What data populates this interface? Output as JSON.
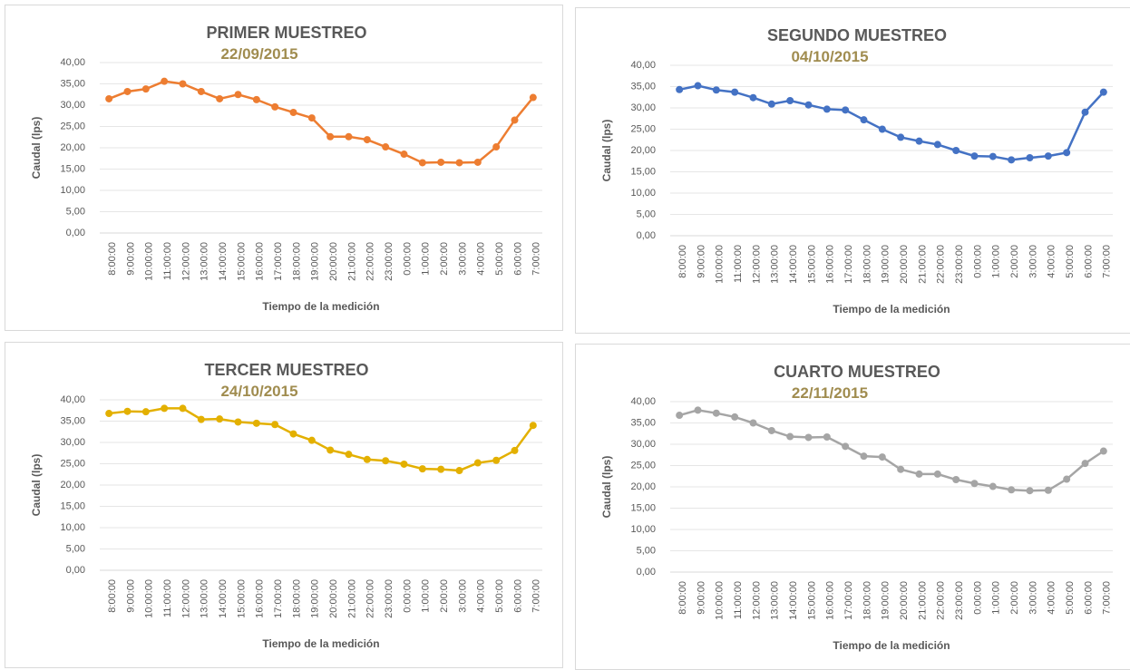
{
  "chart_data": [
    {
      "type": "line",
      "title": "PRIMER MUESTREO",
      "subtitle": "22/09/2015",
      "y_label": "Caudal (lps)",
      "x_label": "Tiempo de la medición",
      "categories": [
        "8:00:00",
        "9:00:00",
        "10:00:00",
        "11:00:00",
        "12:00:00",
        "13:00:00",
        "14:00:00",
        "15:00:00",
        "16:00:00",
        "17:00:00",
        "18:00:00",
        "19:00:00",
        "20:00:00",
        "21:00:00",
        "22:00:00",
        "23:00:00",
        "0:00:00",
        "1:00:00",
        "2:00:00",
        "3:00:00",
        "4:00:00",
        "5:00:00",
        "6:00:00",
        "7:00:00"
      ],
      "values": [
        31.5,
        33.2,
        33.8,
        35.6,
        35,
        33.2,
        31.5,
        32.5,
        31.3,
        29.6,
        28.3,
        27,
        22.6,
        22.6,
        21.9,
        20.2,
        18.5,
        16.5,
        16.6,
        16.5,
        16.6,
        20.2,
        26.5,
        31.8
      ],
      "color": "#ed7d31",
      "ylim": [
        0,
        40
      ],
      "yticks": [
        {
          "value": 0,
          "label": "0,00"
        },
        {
          "value": 5,
          "label": "5,00"
        },
        {
          "value": 10,
          "label": "10,00"
        },
        {
          "value": 15,
          "label": "15,00"
        },
        {
          "value": 20,
          "label": "20,00"
        },
        {
          "value": 25,
          "label": "25,00"
        },
        {
          "value": 30,
          "label": "30,00"
        },
        {
          "value": 35,
          "label": "35,00"
        },
        {
          "value": 40,
          "label": "40,00"
        }
      ],
      "grid": true
    },
    {
      "type": "line",
      "title": "SEGUNDO MUESTREO",
      "subtitle": "04/10/2015",
      "y_label": "Caudal (lps)",
      "x_label": "Tiempo de la medición",
      "categories": [
        "8:00:00",
        "9:00:00",
        "10:00:00",
        "11:00:00",
        "12:00:00",
        "13:00:00",
        "14:00:00",
        "15:00:00",
        "16:00:00",
        "17:00:00",
        "18:00:00",
        "19:00:00",
        "20:00:00",
        "21:00:00",
        "22:00:00",
        "23:00:00",
        "0:00:00",
        "1:00:00",
        "2:00:00",
        "3:00:00",
        "4:00:00",
        "5:00:00",
        "6:00:00",
        "7:00:00"
      ],
      "values": [
        34.3,
        35.2,
        34.2,
        33.7,
        32.4,
        30.9,
        31.7,
        30.7,
        29.7,
        29.5,
        27.2,
        25,
        23.1,
        22.2,
        21.4,
        20,
        18.7,
        18.6,
        17.8,
        18.3,
        18.7,
        19.5,
        29,
        33.7
      ],
      "color": "#4472c4",
      "ylim": [
        0,
        40
      ],
      "yticks": [
        {
          "value": 0,
          "label": "0,00"
        },
        {
          "value": 5,
          "label": "5,00"
        },
        {
          "value": 10,
          "label": "10,00"
        },
        {
          "value": 15,
          "label": "15,00"
        },
        {
          "value": 20,
          "label": "20,00"
        },
        {
          "value": 25,
          "label": "25,00"
        },
        {
          "value": 30,
          "label": "30,00"
        },
        {
          "value": 35,
          "label": "35,00"
        },
        {
          "value": 40,
          "label": "40,00"
        }
      ],
      "grid": true
    },
    {
      "type": "line",
      "title": "TERCER MUESTREO",
      "subtitle": "24/10/2015",
      "y_label": "Caudal (lps)",
      "x_label": "Tiempo de la medición",
      "categories": [
        "8:00:00",
        "9:00:00",
        "10:00:00",
        "11:00:00",
        "12:00:00",
        "13:00:00",
        "14:00:00",
        "15:00:00",
        "16:00:00",
        "17:00:00",
        "18:00:00",
        "19:00:00",
        "20:00:00",
        "21:00:00",
        "22:00:00",
        "23:00:00",
        "0:00:00",
        "1:00:00",
        "2:00:00",
        "3:00:00",
        "4:00:00",
        "5:00:00",
        "6:00:00",
        "7:00:00"
      ],
      "values": [
        36.8,
        37.3,
        37.2,
        38,
        38,
        35.4,
        35.5,
        34.8,
        34.5,
        34.2,
        32,
        30.5,
        28.2,
        27.2,
        26,
        25.7,
        24.9,
        23.8,
        23.7,
        23.4,
        25.2,
        25.8,
        28.1,
        34
      ],
      "color": "#e3b000",
      "ylim": [
        0,
        40
      ],
      "yticks": [
        {
          "value": 0,
          "label": "0,00"
        },
        {
          "value": 5,
          "label": "5,00"
        },
        {
          "value": 10,
          "label": "10,00"
        },
        {
          "value": 15,
          "label": "15,00"
        },
        {
          "value": 20,
          "label": "20,00"
        },
        {
          "value": 25,
          "label": "25,00"
        },
        {
          "value": 30,
          "label": "30,00"
        },
        {
          "value": 35,
          "label": "35,00"
        },
        {
          "value": 40,
          "label": "40,00"
        }
      ],
      "grid": true
    },
    {
      "type": "line",
      "title": "CUARTO MUESTREO",
      "subtitle": "22/11/2015",
      "y_label": "Caudal (lps)",
      "x_label": "Tiempo de la medición",
      "categories": [
        "8:00:00",
        "9:00:00",
        "10:00:00",
        "11:00:00",
        "12:00:00",
        "13:00:00",
        "14:00:00",
        "15:00:00",
        "16:00:00",
        "17:00:00",
        "18:00:00",
        "19:00:00",
        "20:00:00",
        "21:00:00",
        "22:00:00",
        "23:00:00",
        "0:00:00",
        "1:00:00",
        "2:00:00",
        "3:00:00",
        "4:00:00",
        "5:00:00",
        "6:00:00",
        "7:00:00"
      ],
      "values": [
        36.8,
        38,
        37.3,
        36.4,
        35,
        33.2,
        31.8,
        31.6,
        31.7,
        29.5,
        27.2,
        27,
        24.1,
        23,
        23,
        21.7,
        20.8,
        20.1,
        19.3,
        19.1,
        19.2,
        21.8,
        25.5,
        28.4
      ],
      "color": "#a5a5a5",
      "ylim": [
        0,
        40
      ],
      "yticks": [
        {
          "value": 0,
          "label": "0,00"
        },
        {
          "value": 5,
          "label": "5,00"
        },
        {
          "value": 10,
          "label": "10,00"
        },
        {
          "value": 15,
          "label": "15,00"
        },
        {
          "value": 20,
          "label": "20,00"
        },
        {
          "value": 25,
          "label": "25,00"
        },
        {
          "value": 30,
          "label": "30,00"
        },
        {
          "value": 35,
          "label": "35,00"
        },
        {
          "value": 40,
          "label": "40,00"
        }
      ],
      "grid": true
    }
  ]
}
